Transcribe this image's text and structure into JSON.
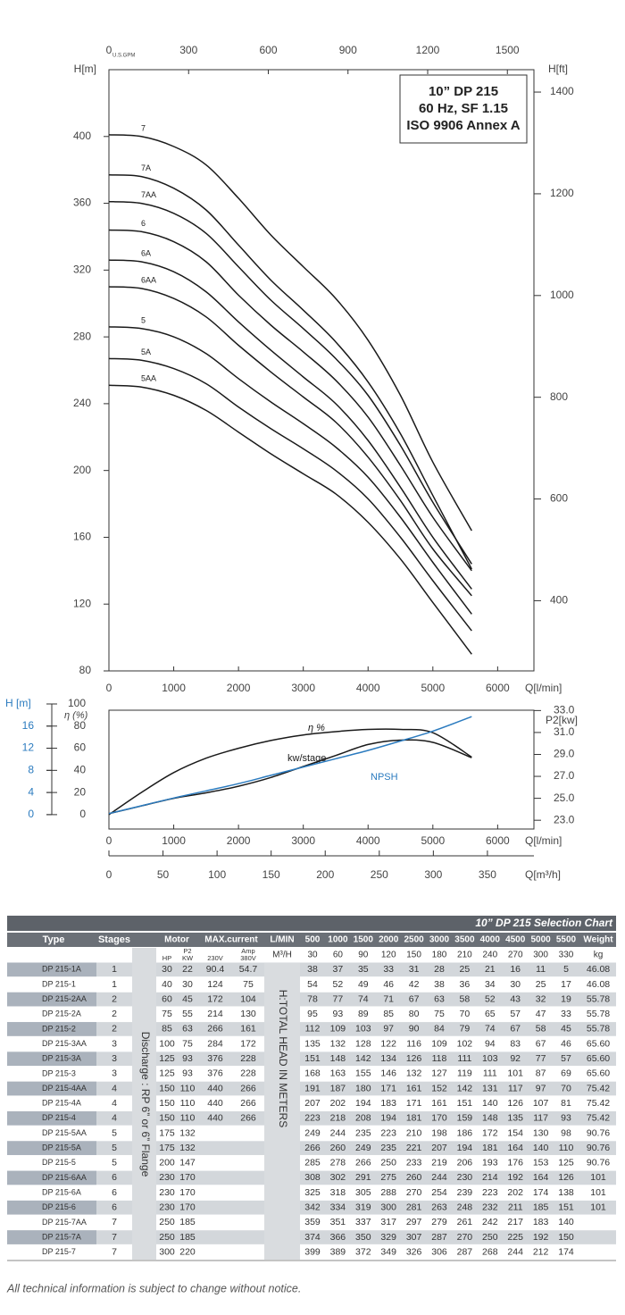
{
  "chart_data": [
    {
      "type": "line",
      "title_lines": [
        "10” DP 215",
        "60 Hz, SF 1.15",
        "ISO 9906 Annex A"
      ],
      "ylabel": "H[m]",
      "y2label": "H[ft]",
      "xlabel": "Q[l/min]",
      "x2label": "U.S.GPM",
      "x": [
        0,
        500,
        1000,
        1500,
        2000,
        2500,
        3000,
        3500,
        4000,
        4500,
        5000,
        5600
      ],
      "xlim": [
        0,
        6560
      ],
      "xticks": [
        0,
        1000,
        2000,
        3000,
        4000,
        5000,
        6000
      ],
      "x2lim": [
        0,
        1600
      ],
      "x2ticks": [
        0,
        300,
        600,
        900,
        1200,
        1500
      ],
      "ylim": [
        80,
        440
      ],
      "yticks": [
        80,
        120,
        160,
        200,
        240,
        280,
        320,
        360,
        400
      ],
      "y2lim": [
        262,
        1444
      ],
      "y2ticks": [
        400,
        600,
        800,
        1000,
        1200,
        1400
      ],
      "series": [
        {
          "name": "7",
          "color": "#1a1a1a",
          "values": [
            401,
            400,
            394,
            383,
            363,
            341,
            322,
            303,
            278,
            245,
            205,
            164
          ]
        },
        {
          "name": "7A",
          "color": "#1a1a1a",
          "values": [
            377,
            376,
            369,
            356,
            335,
            314,
            296,
            277,
            253,
            222,
            185,
            141
          ]
        },
        {
          "name": "7AA",
          "color": "#1a1a1a",
          "values": [
            361,
            360,
            354,
            342,
            322,
            302,
            285,
            267,
            245,
            215,
            181,
            144
          ]
        },
        {
          "name": "6",
          "color": "#1a1a1a",
          "values": [
            344,
            343,
            337,
            325,
            305,
            287,
            271,
            254,
            232,
            203,
            172,
            140
          ]
        },
        {
          "name": "6A",
          "color": "#1a1a1a",
          "values": [
            326,
            325,
            319,
            307,
            289,
            272,
            256,
            240,
            218,
            190,
            160,
            129
          ]
        },
        {
          "name": "6AA",
          "color": "#1a1a1a",
          "values": [
            310,
            309,
            303,
            292,
            275,
            259,
            244,
            229,
            208,
            182,
            153,
            125
          ]
        },
        {
          "name": "5",
          "color": "#1a1a1a",
          "values": [
            286,
            285,
            280,
            270,
            255,
            241,
            228,
            214,
            196,
            172,
            145,
            114
          ]
        },
        {
          "name": "5A",
          "color": "#1a1a1a",
          "values": [
            267,
            266,
            261,
            252,
            238,
            225,
            213,
            200,
            183,
            160,
            134,
            104
          ]
        },
        {
          "name": "5AA",
          "color": "#1a1a1a",
          "values": [
            251,
            250,
            245,
            236,
            223,
            210,
            198,
            186,
            169,
            147,
            121,
            90
          ]
        }
      ]
    },
    {
      "type": "line",
      "ylabel": "η (%)",
      "y3label": "H [m]",
      "y2label": "P2[kw]",
      "xlabel": "Q[l/min]",
      "x2label": "Q[m³/h]",
      "x": [
        0,
        500,
        1000,
        1500,
        2000,
        2500,
        3000,
        3500,
        4000,
        4500,
        5000,
        5600
      ],
      "xlim": [
        0,
        6560
      ],
      "xticks": [
        0,
        1000,
        2000,
        3000,
        4000,
        5000,
        6000
      ],
      "x2lim": [
        0,
        393
      ],
      "x2ticks": [
        0,
        50,
        100,
        150,
        200,
        250,
        300,
        350
      ],
      "ylim": [
        -13,
        100
      ],
      "yticks": [
        0,
        20,
        40,
        60,
        80,
        100
      ],
      "y3lim": [
        -2.6,
        20
      ],
      "y3ticks": [
        0,
        4,
        8,
        12,
        16
      ],
      "y3color": "#2b7bbf",
      "y2lim": [
        22.2,
        33.6
      ],
      "y2ticks": [
        {
          "value": 23,
          "label": "23.0"
        },
        {
          "value": 25,
          "label": "25.0"
        },
        {
          "value": 27,
          "label": "27.0"
        },
        {
          "value": 29,
          "label": "29.0"
        },
        {
          "value": 31,
          "label": "31.0"
        },
        {
          "value": 33,
          "label": "33.0"
        }
      ],
      "series": [
        {
          "name": "η %",
          "color": "#1a1a1a",
          "axis": "y",
          "values": [
            0,
            20,
            38,
            51,
            60,
            67,
            72,
            75,
            77,
            77,
            74,
            52
          ]
        },
        {
          "name": "kw/stage",
          "color": "#1a1a1a",
          "axis": "y2",
          "values": [
            23.6,
            24.3,
            25.0,
            25.5,
            26.1,
            26.9,
            27.9,
            28.9,
            29.9,
            30.3,
            30.1,
            28.7
          ]
        },
        {
          "name": "NPSH",
          "color": "#2b7bbf",
          "axis": "y3",
          "values": [
            0.2,
            1.6,
            3.0,
            4.3,
            5.6,
            7.1,
            8.6,
            10.1,
            11.6,
            13.3,
            15.1,
            17.7
          ]
        }
      ]
    }
  ],
  "table": {
    "title": "10” DP 215 Selection Chart",
    "header": [
      "Type",
      "Stages",
      "Motor",
      "MAX.current",
      "L/MIN",
      "500",
      "1000",
      "1500",
      "2000",
      "2500",
      "3000",
      "3500",
      "4000",
      "4500",
      "5000",
      "5500",
      "Weight"
    ],
    "subheader": {
      "p2": "P2",
      "hp": "HP",
      "kw": "KW",
      "amp": "Amp",
      "v230": "230V",
      "v380": "380V",
      "m3h": "M³/H",
      "flows": [
        "30",
        "60",
        "90",
        "120",
        "150",
        "180",
        "210",
        "240",
        "270",
        "300",
        "330"
      ],
      "weight": "kg"
    },
    "discharge": "Discharge : RP 6” or 6” Flange",
    "head_note": "H:TOTAL HEAD IN METERS",
    "rows": [
      [
        "DP 215-1A",
        "1",
        "30",
        "22",
        "90.4",
        "54.7",
        "38",
        "37",
        "35",
        "33",
        "31",
        "28",
        "25",
        "21",
        "16",
        "11",
        "5",
        "46.08"
      ],
      [
        "DP 215-1",
        "1",
        "40",
        "30",
        "124",
        "75",
        "54",
        "52",
        "49",
        "46",
        "42",
        "38",
        "36",
        "34",
        "30",
        "25",
        "17",
        "46.08"
      ],
      [
        "DP 215-2AA",
        "2",
        "60",
        "45",
        "172",
        "104",
        "78",
        "77",
        "74",
        "71",
        "67",
        "63",
        "58",
        "52",
        "43",
        "32",
        "19",
        "55.78"
      ],
      [
        "DP 215-2A",
        "2",
        "75",
        "55",
        "214",
        "130",
        "95",
        "93",
        "89",
        "85",
        "80",
        "75",
        "70",
        "65",
        "57",
        "47",
        "33",
        "55.78"
      ],
      [
        "DP 215-2",
        "2",
        "85",
        "63",
        "266",
        "161",
        "112",
        "109",
        "103",
        "97",
        "90",
        "84",
        "79",
        "74",
        "67",
        "58",
        "45",
        "55.78"
      ],
      [
        "DP 215-3AA",
        "3",
        "100",
        "75",
        "284",
        "172",
        "135",
        "132",
        "128",
        "122",
        "116",
        "109",
        "102",
        "94",
        "83",
        "67",
        "46",
        "65.60"
      ],
      [
        "DP 215-3A",
        "3",
        "125",
        "93",
        "376",
        "228",
        "151",
        "148",
        "142",
        "134",
        "126",
        "118",
        "111",
        "103",
        "92",
        "77",
        "57",
        "65.60"
      ],
      [
        "DP 215-3",
        "3",
        "125",
        "93",
        "376",
        "228",
        "168",
        "163",
        "155",
        "146",
        "132",
        "127",
        "119",
        "111",
        "101",
        "87",
        "69",
        "65.60"
      ],
      [
        "DP 215-4AA",
        "4",
        "150",
        "110",
        "440",
        "266",
        "191",
        "187",
        "180",
        "171",
        "161",
        "152",
        "142",
        "131",
        "117",
        "97",
        "70",
        "75.42"
      ],
      [
        "DP 215-4A",
        "4",
        "150",
        "110",
        "440",
        "266",
        "207",
        "202",
        "194",
        "183",
        "171",
        "161",
        "151",
        "140",
        "126",
        "107",
        "81",
        "75.42"
      ],
      [
        "DP 215-4",
        "4",
        "150",
        "110",
        "440",
        "266",
        "223",
        "218",
        "208",
        "194",
        "181",
        "170",
        "159",
        "148",
        "135",
        "117",
        "93",
        "75.42"
      ],
      [
        "DP 215-5AA",
        "5",
        "175",
        "132",
        null,
        null,
        "249",
        "244",
        "235",
        "223",
        "210",
        "198",
        "186",
        "172",
        "154",
        "130",
        "98",
        "90.76"
      ],
      [
        "DP 215-5A",
        "5",
        "175",
        "132",
        null,
        null,
        "266",
        "260",
        "249",
        "235",
        "221",
        "207",
        "194",
        "181",
        "164",
        "140",
        "110",
        "90.76"
      ],
      [
        "DP 215-5",
        "5",
        "200",
        "147",
        null,
        null,
        "285",
        "278",
        "266",
        "250",
        "233",
        "219",
        "206",
        "193",
        "176",
        "153",
        "125",
        "90.76"
      ],
      [
        "DP 215-6AA",
        "6",
        "230",
        "170",
        null,
        null,
        "308",
        "302",
        "291",
        "275",
        "260",
        "244",
        "230",
        "214",
        "192",
        "164",
        "126",
        "101"
      ],
      [
        "DP 215-6A",
        "6",
        "230",
        "170",
        null,
        null,
        "325",
        "318",
        "305",
        "288",
        "270",
        "254",
        "239",
        "223",
        "202",
        "174",
        "138",
        "101"
      ],
      [
        "DP 215-6",
        "6",
        "230",
        "170",
        null,
        null,
        "342",
        "334",
        "319",
        "300",
        "281",
        "263",
        "248",
        "232",
        "211",
        "185",
        "151",
        "101"
      ],
      [
        "DP 215-7AA",
        "7",
        "250",
        "185",
        null,
        null,
        "359",
        "351",
        "337",
        "317",
        "297",
        "279",
        "261",
        "242",
        "217",
        "183",
        "140",
        null
      ],
      [
        "DP 215-7A",
        "7",
        "250",
        "185",
        null,
        null,
        "374",
        "366",
        "350",
        "329",
        "307",
        "287",
        "270",
        "250",
        "225",
        "192",
        "150",
        null
      ],
      [
        "DP 215-7",
        "7",
        "300",
        "220",
        null,
        null,
        "399",
        "389",
        "372",
        "349",
        "326",
        "306",
        "287",
        "268",
        "244",
        "212",
        "174",
        null
      ]
    ]
  },
  "footer": "All technical information is subject to change without notice."
}
